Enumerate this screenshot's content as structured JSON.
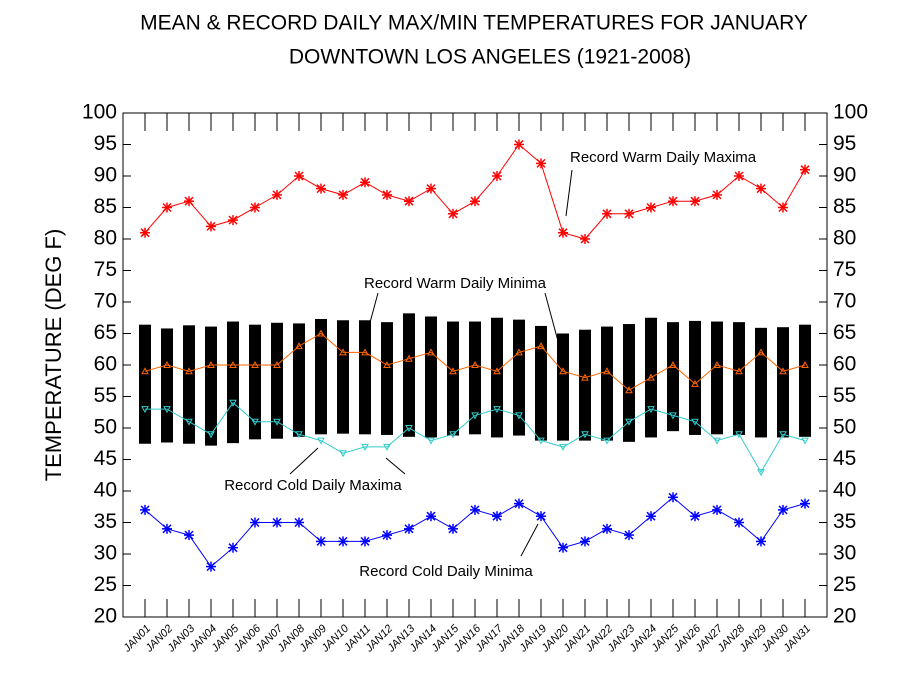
{
  "chart_data": [
    {
      "type": "range-bar",
      "title": "MEAN & RECORD DAILY MAX/MIN TEMPERATURES FOR JANUARY",
      "subtitle": "DOWNTOWN LOS ANGELES (1921-2008)",
      "ylabel": "TEMPERATURE (DEG F)",
      "categories": [
        "JAN01",
        "JAN02",
        "JAN03",
        "JAN04",
        "JAN05",
        "JAN06",
        "JAN07",
        "JAN08",
        "JAN09",
        "JAN10",
        "JAN11",
        "JAN12",
        "JAN13",
        "JAN14",
        "JAN15",
        "JAN16",
        "JAN17",
        "JAN18",
        "JAN19",
        "JAN20",
        "JAN21",
        "JAN22",
        "JAN23",
        "JAN24",
        "JAN25",
        "JAN26",
        "JAN27",
        "JAN28",
        "JAN29",
        "JAN30",
        "JAN31"
      ],
      "low": [
        47.5,
        47.7,
        47.5,
        47.2,
        47.6,
        48.2,
        48.3,
        48.6,
        49.0,
        49.1,
        49.0,
        48.9,
        48.6,
        48.5,
        48.8,
        49.0,
        48.5,
        48.8,
        48.0,
        48.0,
        48.0,
        48.0,
        47.8,
        48.5,
        49.5,
        48.9,
        49.0,
        48.9,
        48.5,
        48.5,
        48.6
      ],
      "high": [
        66.4,
        65.8,
        66.3,
        66.1,
        66.9,
        66.4,
        66.7,
        66.6,
        67.3,
        67.1,
        67.1,
        66.8,
        68.2,
        67.7,
        66.9,
        66.9,
        67.5,
        67.2,
        66.2,
        65.0,
        65.6,
        66.1,
        66.5,
        67.5,
        66.8,
        67.0,
        66.9,
        66.8,
        65.9,
        66.0,
        66.4
      ],
      "color": "#000000",
      "ylim": [
        20,
        100
      ],
      "yticks": [
        20,
        25,
        30,
        35,
        40,
        45,
        50,
        55,
        60,
        65,
        70,
        75,
        80,
        85,
        90,
        95,
        100
      ]
    },
    {
      "type": "line",
      "series": [
        {
          "name": "Record Warm Daily Maxima",
          "color": "#ff0000",
          "marker": "star",
          "values": [
            81,
            85,
            86,
            82,
            83,
            85,
            87,
            90,
            88,
            87,
            89,
            87,
            86,
            88,
            84,
            86,
            90,
            95,
            92,
            81,
            80,
            84,
            84,
            85,
            86,
            86,
            87,
            90,
            88,
            85,
            91
          ]
        },
        {
          "name": "Record Warm Daily Minima",
          "color": "#ff6600",
          "marker": "triangle-up",
          "values": [
            59,
            60,
            59,
            60,
            60,
            60,
            60,
            63,
            65,
            62,
            62,
            60,
            61,
            62,
            59,
            60,
            59,
            62,
            63,
            59,
            58,
            59,
            56,
            58,
            60,
            57,
            60,
            59,
            62,
            59,
            60
          ]
        },
        {
          "name": "Record Cold Daily Maxima",
          "color": "#33cccc",
          "marker": "triangle-down",
          "values": [
            53,
            53,
            51,
            49,
            54,
            51,
            51,
            49,
            48,
            46,
            47,
            47,
            50,
            48,
            49,
            52,
            53,
            52,
            48,
            47,
            49,
            48,
            51,
            53,
            52,
            51,
            48,
            49,
            43,
            49,
            48
          ]
        },
        {
          "name": "Record Cold Daily Minima",
          "color": "#0000ff",
          "marker": "star",
          "values": [
            37,
            34,
            33,
            28,
            31,
            35,
            35,
            35,
            32,
            32,
            32,
            33,
            34,
            36,
            34,
            37,
            36,
            38,
            36,
            31,
            32,
            34,
            33,
            36,
            39,
            36,
            37,
            35,
            32,
            37,
            38
          ]
        }
      ]
    }
  ]
}
